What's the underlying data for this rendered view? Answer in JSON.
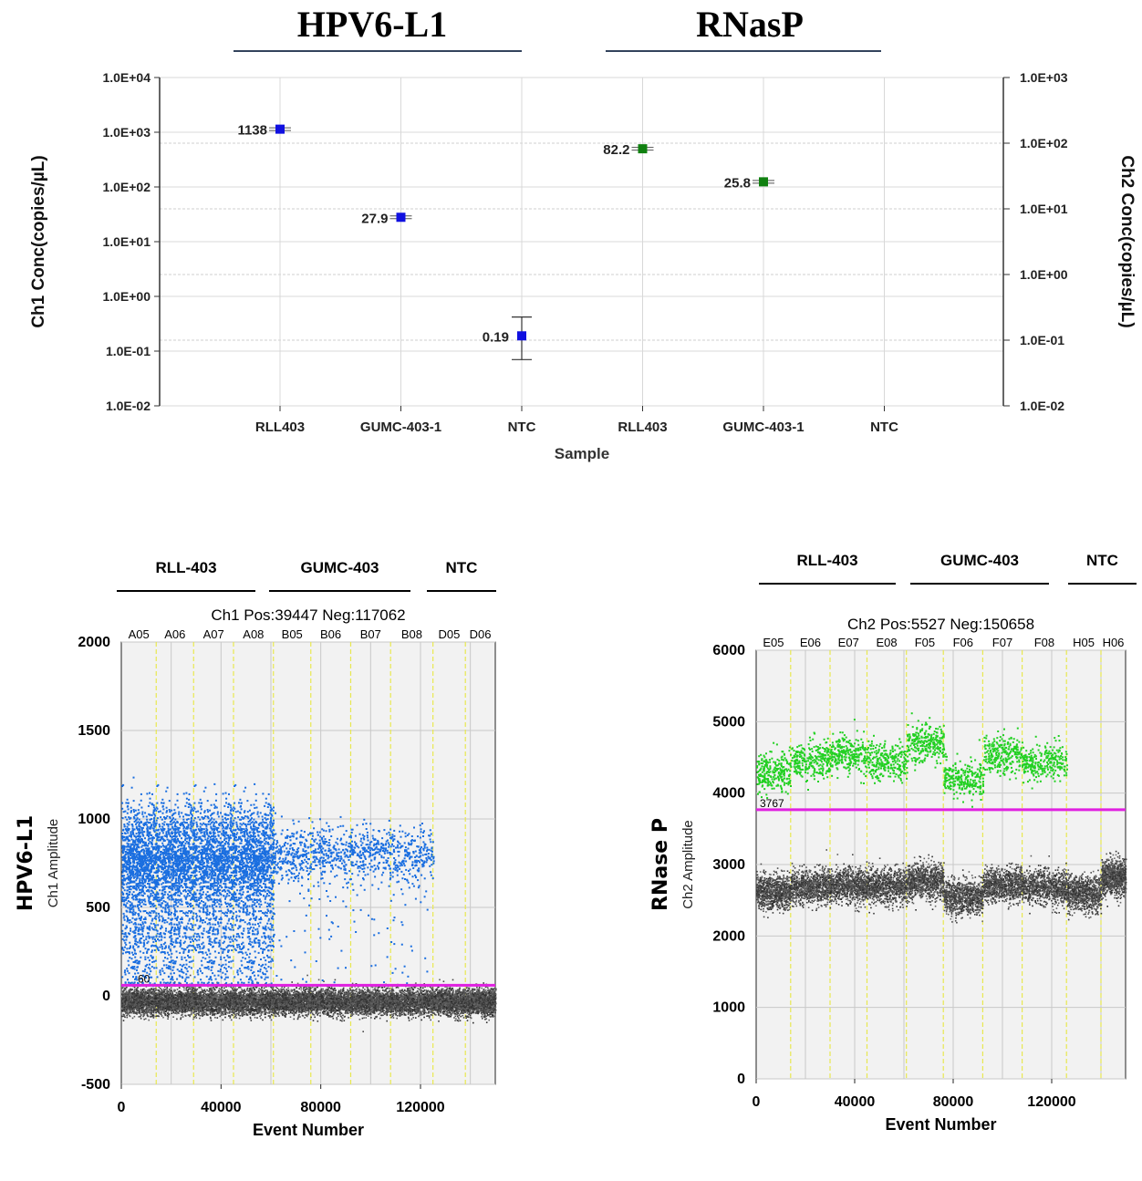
{
  "header": {
    "left_title": "HPV6-L1",
    "right_title": "RNasP"
  },
  "chart_data": [
    {
      "type": "scatter",
      "subtype": "concentration-with-error-bars",
      "xlabel": "Sample",
      "ylabel_left": "Ch1 Conc(copies/µL)",
      "ylabel_right": "Ch2 Conc(copies/µL)",
      "y_scale": "log",
      "ylim_left": [
        0.01,
        10000
      ],
      "ylim_right": [
        0.01,
        1000
      ],
      "yticks_left": [
        "1.0E-02",
        "1.0E-01",
        "1.0E+00",
        "1.0E+01",
        "1.0E+02",
        "1.0E+03",
        "1.0E+04"
      ],
      "yticks_right": [
        "1.0E-02",
        "1.0E-01",
        "1.0E+00",
        "1.0E+01",
        "1.0E+02",
        "1.0E+03"
      ],
      "categories": [
        "RLL403",
        "GUMC-403-1",
        "NTC",
        "RLL403",
        "GUMC-403-1",
        "NTC"
      ],
      "series": [
        {
          "name": "",
          "channel": "Ch1",
          "axis": "left",
          "color": "#1010e0",
          "points": [
            {
              "category_index": 0,
              "value": 1138,
              "label": "1138",
              "err_low": 1050,
              "err_high": 1230
            },
            {
              "category_index": 1,
              "value": 27.9,
              "label": "27.9",
              "err_low": 24,
              "err_high": 32
            },
            {
              "category_index": 2,
              "value": 0.19,
              "label": "0.19",
              "err_low": 0.07,
              "err_high": 0.42
            }
          ]
        },
        {
          "name": "",
          "channel": "Ch2",
          "axis": "right",
          "color": "#108010",
          "points": [
            {
              "category_index": 3,
              "value": 82.2,
              "label": "82.2",
              "err_low": 77,
              "err_high": 88
            },
            {
              "category_index": 4,
              "value": 25.8,
              "label": "25.8",
              "err_low": 23,
              "err_high": 28.5
            }
          ]
        }
      ],
      "group_labels": [
        "HPV6-L1",
        "RNasP"
      ],
      "grid": true
    },
    {
      "type": "scatter",
      "subtype": "droplet-amplitude",
      "title": "Ch1 Pos:39447 Neg:117062",
      "side_label": "HPV6-L1",
      "xlabel": "Event Number",
      "ylabel": "Ch1 Amplitude",
      "xlim": [
        0,
        150000
      ],
      "ylim": [
        -500,
        2000
      ],
      "xticks": [
        0,
        40000,
        80000,
        120000
      ],
      "yticks": [
        -500,
        0,
        500,
        1000,
        1500,
        2000
      ],
      "threshold": 60,
      "threshold_label": "60",
      "threshold_color": "#e020e0",
      "positive_color": "#1a6ee0",
      "negative_color": "#404040",
      "well_labels": [
        "A05",
        "A06",
        "A07",
        "A08",
        "B05",
        "B06",
        "B07",
        "B08",
        "D05",
        "D06"
      ],
      "groups": [
        {
          "label": "RLL-403"
        },
        {
          "label": "GUMC-403"
        },
        {
          "label": "NTC"
        }
      ],
      "well_boundaries": [
        0,
        14000,
        29000,
        45000,
        61000,
        76000,
        92000,
        108000,
        125000,
        138000,
        150000
      ],
      "wells": [
        {
          "pos_center": 800,
          "pos_density": "high",
          "neg_center": -30
        },
        {
          "pos_center": 800,
          "pos_density": "high",
          "neg_center": -30
        },
        {
          "pos_center": 800,
          "pos_density": "high",
          "neg_center": -30
        },
        {
          "pos_center": 800,
          "pos_density": "high",
          "neg_center": -30
        },
        {
          "pos_center": 800,
          "pos_density": "low",
          "neg_center": -30
        },
        {
          "pos_center": 810,
          "pos_density": "low",
          "neg_center": -30
        },
        {
          "pos_center": 810,
          "pos_density": "low",
          "neg_center": -30
        },
        {
          "pos_center": 800,
          "pos_density": "low",
          "neg_center": -30
        },
        {
          "pos_center": null,
          "pos_density": "none",
          "neg_center": -30
        },
        {
          "pos_center": null,
          "pos_density": "none",
          "neg_center": -30
        }
      ]
    },
    {
      "type": "scatter",
      "subtype": "droplet-amplitude",
      "title": "Ch2 Pos:5527 Neg:150658",
      "side_label": "RNase P",
      "xlabel": "Event Number",
      "ylabel": "Ch2 Amplitude",
      "xlim": [
        0,
        150000
      ],
      "ylim": [
        0,
        6000
      ],
      "xticks": [
        0,
        40000,
        80000,
        120000
      ],
      "yticks": [
        0,
        1000,
        2000,
        3000,
        4000,
        5000,
        6000
      ],
      "threshold": 3767,
      "threshold_label": "3767",
      "threshold_color": "#e020e0",
      "positive_color": "#22d022",
      "negative_color": "#404040",
      "well_labels": [
        "E05",
        "E06",
        "E07",
        "E08",
        "F05",
        "F06",
        "F07",
        "F08",
        "H05",
        "H06"
      ],
      "groups": [
        {
          "label": "RLL-403"
        },
        {
          "label": "GUMC-403"
        },
        {
          "label": "NTC"
        }
      ],
      "well_boundaries": [
        0,
        14000,
        30000,
        45000,
        61000,
        76000,
        92000,
        108000,
        126000,
        140000,
        150000
      ],
      "wells": [
        {
          "pos_center": 4300,
          "neg_center": 2620
        },
        {
          "pos_center": 4450,
          "neg_center": 2700
        },
        {
          "pos_center": 4550,
          "neg_center": 2720
        },
        {
          "pos_center": 4450,
          "neg_center": 2700
        },
        {
          "pos_center": 4700,
          "neg_center": 2780
        },
        {
          "pos_center": 4200,
          "neg_center": 2550
        },
        {
          "pos_center": 4550,
          "neg_center": 2720
        },
        {
          "pos_center": 4450,
          "neg_center": 2700
        },
        {
          "pos_center": null,
          "neg_center": 2600
        },
        {
          "pos_center": null,
          "neg_center": 2830
        }
      ]
    }
  ]
}
